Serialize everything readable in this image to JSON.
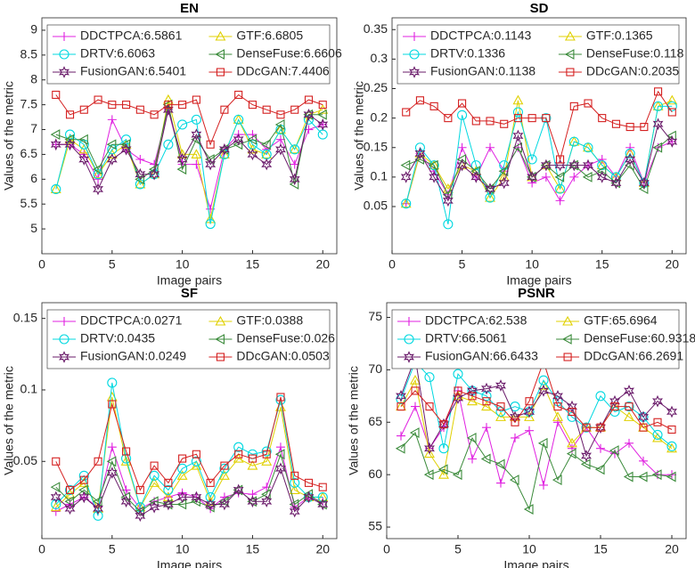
{
  "chart_data": [
    {
      "type": "line",
      "title": "EN",
      "x_label": "Image pairs",
      "y_label": "Values of the metric",
      "xlim": [
        0,
        21
      ],
      "xticks": [
        0,
        5,
        10,
        15,
        20
      ],
      "ylim": [
        4.5,
        9.25
      ],
      "yticks": [
        5,
        5.5,
        6,
        6.5,
        7,
        7.5,
        8,
        8.5,
        9
      ],
      "x": [
        1,
        2,
        3,
        4,
        5,
        6,
        7,
        8,
        9,
        10,
        11,
        12,
        13,
        14,
        15,
        16,
        17,
        18,
        19,
        20
      ],
      "series": [
        {
          "name": "DDCTPCA:6.5861",
          "color": "#e020e0",
          "marker": "plus",
          "values": [
            6.7,
            6.7,
            6.5,
            6.0,
            7.2,
            6.6,
            6.4,
            6.3,
            7.4,
            6.3,
            6.3,
            5.4,
            6.6,
            6.9,
            6.9,
            6.6,
            6.8,
            6.3,
            7.0,
            7.1
          ]
        },
        {
          "name": "GTF:6.6805",
          "color": "#e0d000",
          "marker": "triangle-up",
          "values": [
            5.8,
            6.8,
            6.6,
            6.1,
            6.5,
            6.7,
            5.9,
            6.1,
            7.6,
            6.5,
            6.5,
            5.2,
            6.5,
            7.2,
            6.6,
            6.5,
            7.0,
            6.6,
            7.3,
            7.4
          ]
        },
        {
          "name": "DRTV:6.6063",
          "color": "#00d8e0",
          "marker": "circle",
          "values": [
            5.8,
            6.9,
            6.7,
            6.1,
            6.6,
            6.8,
            5.9,
            6.1,
            6.7,
            7.1,
            7.2,
            5.1,
            6.5,
            7.2,
            6.7,
            6.5,
            7.0,
            6.6,
            7.2,
            6.9
          ]
        },
        {
          "name": "DenseFuse:6.6606",
          "color": "#3a8a3a",
          "marker": "triangle-left",
          "values": [
            6.9,
            6.8,
            6.8,
            6.2,
            6.7,
            6.7,
            6.0,
            6.2,
            7.5,
            6.2,
            6.8,
            6.4,
            6.6,
            6.7,
            6.8,
            6.7,
            7.1,
            5.9,
            7.3,
            7.3
          ]
        },
        {
          "name": "FusionGAN:6.5401",
          "color": "#6a1b6a",
          "marker": "hexagram",
          "values": [
            6.7,
            6.7,
            6.4,
            5.8,
            6.4,
            6.6,
            6.1,
            6.1,
            7.4,
            6.4,
            6.9,
            6.3,
            6.6,
            6.8,
            6.5,
            6.3,
            6.6,
            6.0,
            7.3,
            7.1
          ]
        },
        {
          "name": "DDcGAN:7.4406",
          "color": "#d42020",
          "marker": "square",
          "values": [
            7.7,
            7.3,
            7.4,
            7.6,
            7.5,
            7.5,
            7.4,
            7.3,
            7.5,
            7.5,
            7.6,
            6.7,
            7.4,
            7.7,
            7.5,
            7.4,
            7.3,
            7.4,
            7.6,
            7.5
          ]
        }
      ]
    },
    {
      "type": "line",
      "title": "SD",
      "x_label": "Image pairs",
      "y_label": "Values of the metric",
      "xlim": [
        0,
        21
      ],
      "xticks": [
        0,
        5,
        10,
        15,
        20
      ],
      "ylim": [
        -0.03,
        0.37
      ],
      "yticks": [
        0.05,
        0.1,
        0.15,
        0.2,
        0.25,
        0.3,
        0.35
      ],
      "x": [
        1,
        2,
        3,
        4,
        5,
        6,
        7,
        8,
        9,
        10,
        11,
        12,
        13,
        14,
        15,
        16,
        17,
        18,
        19,
        20
      ],
      "series": [
        {
          "name": "DDCTPCA:0.1143",
          "color": "#e020e0",
          "marker": "plus",
          "values": [
            0.055,
            0.14,
            0.11,
            0.07,
            0.15,
            0.1,
            0.15,
            0.11,
            0.15,
            0.09,
            0.1,
            0.06,
            0.1,
            0.12,
            0.13,
            0.1,
            0.15,
            0.09,
            0.15,
            0.16
          ]
        },
        {
          "name": "GTF:0.1365",
          "color": "#e0d000",
          "marker": "triangle-up",
          "values": [
            0.055,
            0.14,
            0.12,
            0.08,
            0.12,
            0.11,
            0.065,
            0.1,
            0.23,
            0.1,
            0.12,
            0.08,
            0.16,
            0.15,
            0.12,
            0.1,
            0.14,
            0.09,
            0.22,
            0.23
          ]
        },
        {
          "name": "DRTV:0.1336",
          "color": "#00d8e0",
          "marker": "circle",
          "values": [
            0.055,
            0.15,
            0.12,
            0.02,
            0.205,
            0.12,
            0.065,
            0.12,
            0.21,
            0.13,
            0.2,
            0.08,
            0.16,
            0.15,
            0.12,
            0.1,
            0.14,
            0.09,
            0.22,
            0.22
          ]
        },
        {
          "name": "DenseFuse:0.118",
          "color": "#3a8a3a",
          "marker": "triangle-left",
          "values": [
            0.12,
            0.13,
            0.12,
            0.07,
            0.13,
            0.11,
            0.08,
            0.11,
            0.15,
            0.1,
            0.12,
            0.1,
            0.12,
            0.1,
            0.11,
            0.09,
            0.12,
            0.08,
            0.15,
            0.17
          ]
        },
        {
          "name": "FusionGAN:0.1138",
          "color": "#6a1b6a",
          "marker": "hexagram",
          "values": [
            0.1,
            0.14,
            0.1,
            0.06,
            0.12,
            0.1,
            0.08,
            0.09,
            0.17,
            0.1,
            0.12,
            0.12,
            0.12,
            0.12,
            0.1,
            0.09,
            0.13,
            0.09,
            0.19,
            0.16
          ]
        },
        {
          "name": "DDcGAN:0.2035",
          "color": "#d42020",
          "marker": "square",
          "values": [
            0.21,
            0.23,
            0.22,
            0.2,
            0.225,
            0.195,
            0.195,
            0.19,
            0.2,
            0.2,
            0.2,
            0.13,
            0.22,
            0.225,
            0.2,
            0.19,
            0.185,
            0.185,
            0.245,
            0.21
          ]
        }
      ]
    },
    {
      "type": "line",
      "title": "SF",
      "x_label": "Image pairs",
      "y_label": "Values of the metric",
      "xlim": [
        0,
        21
      ],
      "xticks": [
        0,
        5,
        10,
        15,
        20
      ],
      "ylim": [
        -0.004,
        0.161
      ],
      "yticks": [
        0.05,
        0.1,
        0.15
      ],
      "x": [
        1,
        2,
        3,
        4,
        5,
        6,
        7,
        8,
        9,
        10,
        11,
        12,
        13,
        14,
        15,
        16,
        17,
        18,
        19,
        20
      ],
      "series": [
        {
          "name": "DDCTPCA:0.0271",
          "color": "#e020e0",
          "marker": "plus",
          "values": [
            0.015,
            0.02,
            0.025,
            0.018,
            0.06,
            0.03,
            0.017,
            0.022,
            0.025,
            0.028,
            0.025,
            0.017,
            0.025,
            0.028,
            0.027,
            0.032,
            0.06,
            0.018,
            0.025,
            0.022
          ]
        },
        {
          "name": "GTF:0.0388",
          "color": "#e0d000",
          "marker": "triangle-up",
          "values": [
            0.018,
            0.027,
            0.035,
            0.017,
            0.095,
            0.05,
            0.018,
            0.035,
            0.025,
            0.04,
            0.047,
            0.022,
            0.04,
            0.052,
            0.047,
            0.05,
            0.088,
            0.03,
            0.025,
            0.025
          ]
        },
        {
          "name": "DRTV:0.0435",
          "color": "#00d8e0",
          "marker": "circle",
          "values": [
            0.02,
            0.03,
            0.04,
            0.012,
            0.105,
            0.052,
            0.018,
            0.04,
            0.03,
            0.045,
            0.05,
            0.025,
            0.045,
            0.06,
            0.055,
            0.057,
            0.093,
            0.035,
            0.025,
            0.025
          ]
        },
        {
          "name": "DenseFuse:0.026",
          "color": "#3a8a3a",
          "marker": "triangle-left",
          "values": [
            0.032,
            0.022,
            0.03,
            0.022,
            0.05,
            0.025,
            0.015,
            0.022,
            0.02,
            0.02,
            0.022,
            0.018,
            0.022,
            0.03,
            0.022,
            0.027,
            0.055,
            0.02,
            0.027,
            0.02
          ]
        },
        {
          "name": "FusionGAN:0.0249",
          "color": "#6a1b6a",
          "marker": "hexagram",
          "values": [
            0.025,
            0.017,
            0.025,
            0.017,
            0.042,
            0.022,
            0.012,
            0.018,
            0.02,
            0.025,
            0.025,
            0.02,
            0.02,
            0.03,
            0.022,
            0.022,
            0.045,
            0.015,
            0.025,
            0.02
          ]
        },
        {
          "name": "DDcGAN:0.0503",
          "color": "#d42020",
          "marker": "square",
          "values": [
            0.05,
            0.03,
            0.037,
            0.05,
            0.09,
            0.057,
            0.03,
            0.047,
            0.035,
            0.052,
            0.055,
            0.035,
            0.047,
            0.055,
            0.052,
            0.055,
            0.095,
            0.04,
            0.035,
            0.032
          ]
        }
      ]
    },
    {
      "type": "line",
      "title": "PSNR",
      "x_label": "Image pairs",
      "y_label": "Values of the metric",
      "xlim": [
        0,
        21
      ],
      "xticks": [
        0,
        5,
        10,
        15,
        20
      ],
      "ylim": [
        53.9,
        76.4
      ],
      "yticks": [
        55,
        60,
        65,
        70,
        75
      ],
      "x": [
        1,
        2,
        3,
        4,
        5,
        6,
        7,
        8,
        9,
        10,
        11,
        12,
        13,
        14,
        15,
        16,
        17,
        18,
        19,
        20
      ],
      "series": [
        {
          "name": "DDCTPCA:62.538",
          "color": "#e020e0",
          "marker": "plus",
          "values": [
            63.7,
            66.5,
            62.5,
            64.5,
            68.0,
            61.5,
            64.5,
            59.2,
            63.5,
            64.2,
            59.0,
            65.0,
            62.5,
            64.5,
            62.5,
            62.0,
            63.0,
            61.3,
            60.0,
            60.0
          ]
        },
        {
          "name": "GTF:65.6964",
          "color": "#e0d000",
          "marker": "triangle-up",
          "values": [
            66.5,
            69.0,
            62.0,
            60.0,
            67.5,
            67.0,
            66.5,
            65.5,
            65.5,
            65.5,
            68.5,
            65.5,
            63.0,
            64.5,
            64.5,
            66.5,
            65.5,
            64.5,
            63.5,
            62.5
          ]
        },
        {
          "name": "DRTV:66.5061",
          "color": "#00d8e0",
          "marker": "circle",
          "values": [
            67.2,
            70.8,
            69.3,
            62.5,
            69.6,
            68.0,
            67.5,
            66.0,
            66.5,
            66.0,
            69.0,
            67.0,
            65.5,
            64.5,
            67.5,
            66.0,
            66.5,
            65.5,
            63.8,
            62.7
          ]
        },
        {
          "name": "DenseFuse:60.9318",
          "color": "#3a8a3a",
          "marker": "triangle-left",
          "values": [
            62.5,
            64.0,
            60.0,
            60.5,
            60.0,
            63.5,
            61.5,
            61.0,
            59.5,
            56.7,
            63.0,
            59.5,
            62.0,
            61.0,
            60.5,
            62.3,
            59.8,
            59.8,
            60.0,
            59.8
          ]
        },
        {
          "name": "FusionGAN:66.6433",
          "color": "#6a1b6a",
          "marker": "hexagram",
          "values": [
            67.5,
            71.2,
            62.5,
            64.8,
            67.3,
            68.0,
            68.2,
            68.5,
            65.5,
            66.0,
            68.0,
            67.5,
            66.5,
            61.8,
            64.5,
            67.0,
            68.0,
            65.5,
            67.0,
            66.0
          ]
        },
        {
          "name": "DDcGAN:66.2691",
          "color": "#d42020",
          "marker": "square",
          "values": [
            66.5,
            68.0,
            66.5,
            64.8,
            68.0,
            67.5,
            67.0,
            66.5,
            65.0,
            67.0,
            70.8,
            66.5,
            66.0,
            64.5,
            64.5,
            66.5,
            66.5,
            64.5,
            65.0,
            64.3
          ]
        }
      ]
    }
  ]
}
